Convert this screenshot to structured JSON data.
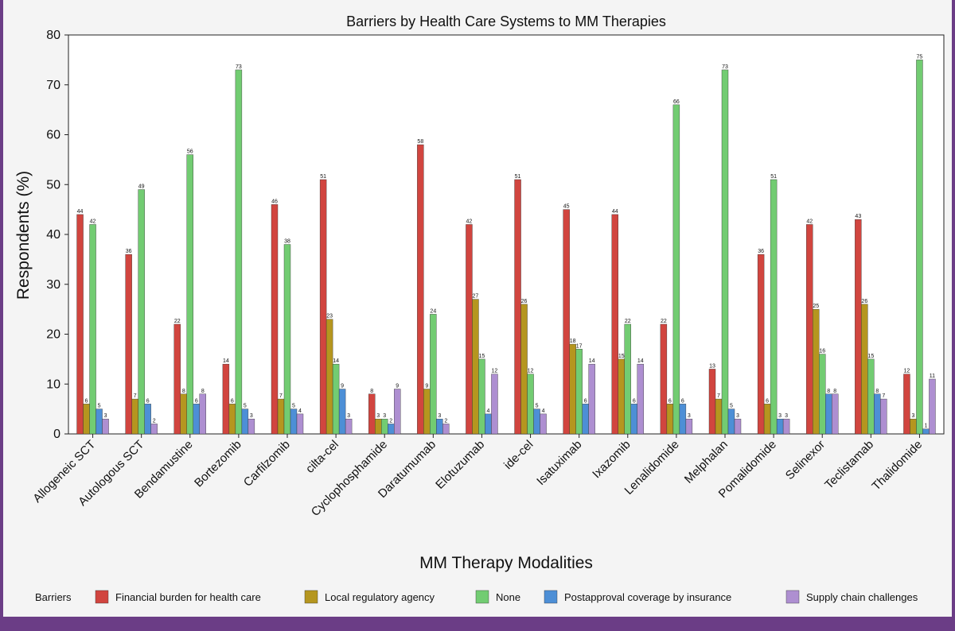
{
  "chart_data": {
    "type": "bar",
    "title": "Barriers by Health Care Systems to MM Therapies",
    "xlabel": "MM Therapy Modalities",
    "ylabel": "Respondents (%)",
    "ylim": [
      0,
      80
    ],
    "yticks": [
      0,
      10,
      20,
      30,
      40,
      50,
      60,
      70,
      80
    ],
    "legend_title": "Barriers",
    "legend_position": "bottom",
    "categories": [
      "Allogeneic SCT",
      "Autologous SCT",
      "Bendamustine",
      "Bortezomib",
      "Carfilzomib",
      "cilta-cel",
      "Cyclophosphamide",
      "Daratumumab",
      "Elotuzumab",
      "ide-cel",
      "Isatuximab",
      "Ixazomib",
      "Lenalidomide",
      "Melphalan",
      "Pomalidomide",
      "Selinexor",
      "Teclistamab",
      "Thalidomide"
    ],
    "series": [
      {
        "name": "Financial burden for health care",
        "color": "#d1453f",
        "values": [
          44,
          36,
          22,
          14,
          46,
          51,
          8,
          58,
          42,
          51,
          45,
          44,
          22,
          13,
          36,
          42,
          43,
          12
        ]
      },
      {
        "name": "Local regulatory agency",
        "color": "#b5961f",
        "values": [
          6,
          7,
          8,
          6,
          7,
          23,
          3,
          9,
          27,
          26,
          18,
          15,
          6,
          7,
          6,
          25,
          26,
          3
        ]
      },
      {
        "name": "None",
        "color": "#72cc72",
        "values": [
          42,
          49,
          56,
          73,
          38,
          14,
          3,
          24,
          15,
          12,
          17,
          22,
          66,
          73,
          51,
          16,
          15,
          75
        ]
      },
      {
        "name": "Postapproval coverage by insurance",
        "color": "#4d8fd6",
        "values": [
          5,
          6,
          6,
          5,
          5,
          9,
          2,
          3,
          4,
          5,
          6,
          6,
          6,
          5,
          3,
          8,
          8,
          1
        ]
      },
      {
        "name": "Supply chain challenges",
        "color": "#ae8fd1",
        "values": [
          3,
          2,
          8,
          3,
          4,
          3,
          9,
          2,
          12,
          4,
          14,
          14,
          3,
          3,
          3,
          8,
          7,
          11
        ]
      }
    ]
  }
}
